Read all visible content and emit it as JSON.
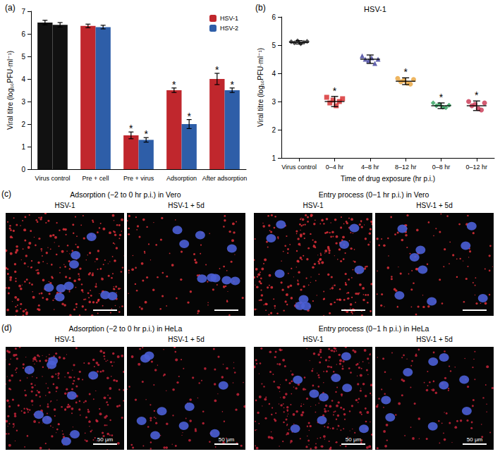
{
  "chart_data": [
    {
      "type": "bar",
      "label": "(a)",
      "y_label": "Viral titre (log₁₀PFU·ml⁻¹)",
      "categories": [
        "Virus control",
        "Pre + cell",
        "Pre + virus",
        "Adsorption",
        "After adsorption"
      ],
      "series": [
        {
          "name": "HSV-1",
          "color": "#c0272d",
          "colors": [
            "#111111",
            "#c0272d",
            "#c0272d",
            "#c0272d",
            "#c0272d"
          ],
          "values": [
            6.5,
            6.35,
            1.5,
            3.5,
            4.0
          ],
          "errors": [
            0.1,
            0.08,
            0.15,
            0.1,
            0.25
          ],
          "annotations": [
            null,
            null,
            "*",
            "*",
            "*"
          ]
        },
        {
          "name": "HSV-2",
          "color": "#2e5ea8",
          "colors": [
            "#111111",
            "#2e5ea8",
            "#2e5ea8",
            "#2e5ea8",
            "#2e5ea8"
          ],
          "values": [
            6.4,
            6.3,
            1.3,
            2.0,
            3.5
          ],
          "errors": [
            0.1,
            0.08,
            0.1,
            0.2,
            0.1
          ],
          "annotations": [
            null,
            null,
            "*",
            "*",
            "*"
          ]
        }
      ],
      "ylim": [
        0,
        7
      ],
      "yticks": [
        0,
        1,
        2,
        3,
        4,
        5,
        6,
        7
      ],
      "legend": "upper right",
      "grid": false
    },
    {
      "type": "scatter",
      "label": "(b)",
      "title": "HSV-1",
      "x_label": "Time of drug exposure (hr p.i.)",
      "y_label": "Viral titre (log₁₀PFU·ml⁻¹)",
      "categories": [
        "Virus control",
        "0–4 hr",
        "4–8 hr",
        "8–12 hr",
        "0–8 hr",
        "0–12 hr"
      ],
      "series": [
        {
          "color": "#222222",
          "marker": "diamond",
          "values": [
            5.12,
            5.08,
            5.15,
            5.05,
            5.1,
            5.13
          ],
          "mean": 5.1,
          "sd": 0.06,
          "annotation": null
        },
        {
          "color": "#d62728",
          "marker": "square",
          "values": [
            3.15,
            2.95,
            3.05,
            2.85,
            3.0,
            3.1
          ],
          "mean": 3.0,
          "sd": 0.18,
          "annotation": "*"
        },
        {
          "color": "#3b3b98",
          "marker": "triangle",
          "values": [
            4.62,
            4.5,
            4.45,
            4.55,
            4.35,
            4.5
          ],
          "mean": 4.5,
          "sd": 0.15,
          "annotation": null
        },
        {
          "color": "#e8a23a",
          "marker": "circle",
          "values": [
            3.82,
            3.7,
            3.75,
            3.65,
            3.62,
            3.78
          ],
          "mean": 3.72,
          "sd": 0.12,
          "annotation": "*"
        },
        {
          "color": "#2ca05a",
          "marker": "diamond",
          "values": [
            2.95,
            2.85,
            2.9,
            2.8,
            2.78,
            2.87
          ],
          "mean": 2.85,
          "sd": 0.1,
          "annotation": "*"
        },
        {
          "color": "#c8324f",
          "marker": "circle",
          "values": [
            3.0,
            2.85,
            2.9,
            2.75,
            2.7,
            2.95
          ],
          "mean": 2.85,
          "sd": 0.17,
          "annotation": "*"
        }
      ],
      "ylim": [
        1,
        6
      ],
      "yticks": [
        1,
        2,
        3,
        4,
        5,
        6
      ],
      "grid": false
    }
  ],
  "image_panels": [
    {
      "label": "(c)",
      "groups": [
        {
          "title": "Adsorption (−2 to 0 hr p.i.) in Vero",
          "images": [
            {
              "caption": "HSV-1"
            },
            {
              "caption": "HSV-1 + 5d"
            }
          ]
        },
        {
          "title": "Entry process (0−1 hr p.i.) in Vero",
          "images": [
            {
              "caption": "HSV-1"
            },
            {
              "caption": "HSV-1 + 5d"
            }
          ]
        }
      ]
    },
    {
      "label": "(d)",
      "groups": [
        {
          "title": "Adsorption (−2 to 0 hr p.i.) in HeLa",
          "images": [
            {
              "caption": "HSV-1",
              "scale_bar": "50 μm"
            },
            {
              "caption": "HSV-1 + 5d",
              "scale_bar": "50 μm"
            }
          ]
        },
        {
          "title": "Entry process (0−1 h p.i.) in HeLa",
          "images": [
            {
              "caption": "HSV-1",
              "scale_bar": "50 μm"
            },
            {
              "caption": "HSV-1 + 5d",
              "scale_bar": "50 μm"
            }
          ]
        }
      ]
    }
  ]
}
